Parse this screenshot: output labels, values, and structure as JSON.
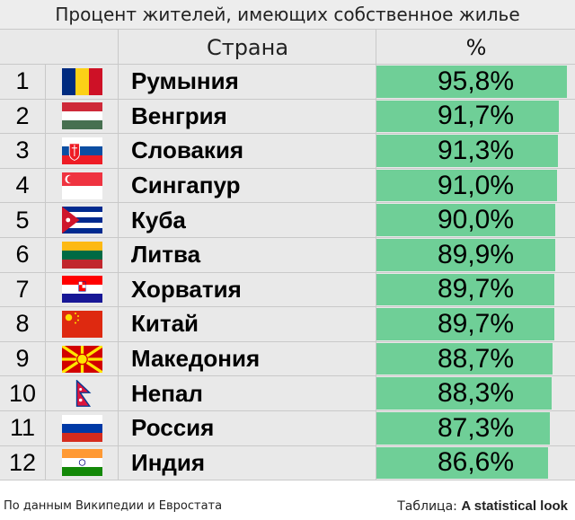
{
  "title": "Процент жителей, имеющих собственное жилье",
  "header": {
    "country": "Страна",
    "percent": "%"
  },
  "footer": {
    "source": "По данным Википедии и Евростата",
    "credit_prefix": "Таблица:",
    "credit_name": "A statistical look"
  },
  "colors": {
    "bar": "#6fcf97",
    "background": "#e9e9e9",
    "grid": "#c9c9c9"
  },
  "chart_data": {
    "type": "table",
    "title": "Процент жителей, имеющих собственное жилье",
    "columns": [
      "",
      "",
      "Страна",
      "%"
    ],
    "max_value": 100,
    "rows": [
      {
        "rank": "1",
        "flag": "flag-romania-icon",
        "country": "Румыния",
        "value": 95.8,
        "label": "95,8%"
      },
      {
        "rank": "2",
        "flag": "flag-hungary-icon",
        "country": "Венгрия",
        "value": 91.7,
        "label": "91,7%"
      },
      {
        "rank": "3",
        "flag": "flag-slovakia-icon",
        "country": "Словакия",
        "value": 91.3,
        "label": "91,3%"
      },
      {
        "rank": "4",
        "flag": "flag-singapore-icon",
        "country": "Сингапур",
        "value": 91.0,
        "label": "91,0%"
      },
      {
        "rank": "5",
        "flag": "flag-cuba-icon",
        "country": "Куба",
        "value": 90.0,
        "label": "90,0%"
      },
      {
        "rank": "6",
        "flag": "flag-lithuania-icon",
        "country": "Литва",
        "value": 89.9,
        "label": "89,9%"
      },
      {
        "rank": "7",
        "flag": "flag-croatia-icon",
        "country": "Хорватия",
        "value": 89.7,
        "label": "89,7%"
      },
      {
        "rank": "8",
        "flag": "flag-china-icon",
        "country": "Китай",
        "value": 89.7,
        "label": "89,7%"
      },
      {
        "rank": "9",
        "flag": "flag-macedonia-icon",
        "country": "Македония",
        "value": 88.7,
        "label": "88,7%"
      },
      {
        "rank": "10",
        "flag": "flag-nepal-icon",
        "country": "Непал",
        "value": 88.3,
        "label": "88,3%"
      },
      {
        "rank": "11",
        "flag": "flag-russia-icon",
        "country": "Россия",
        "value": 87.3,
        "label": "87,3%"
      },
      {
        "rank": "12",
        "flag": "flag-india-icon",
        "country": "Индия",
        "value": 86.6,
        "label": "86,6%"
      }
    ]
  }
}
